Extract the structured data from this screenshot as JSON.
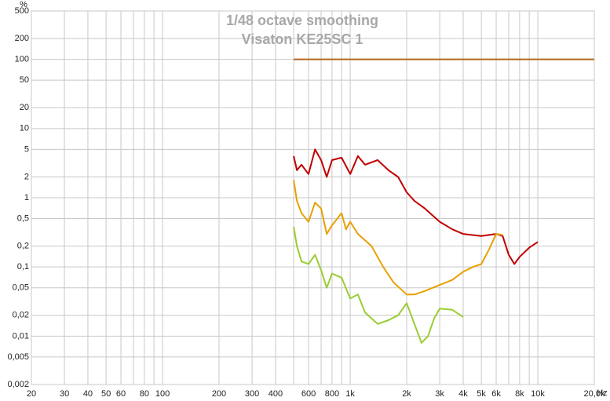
{
  "chart_data": {
    "type": "line",
    "title": "1/48 octave smoothing",
    "subtitle": "Visaton KE25SC 1",
    "y_unit": "%",
    "x_unit": "Hz",
    "xlog": true,
    "ylog": true,
    "grid": true,
    "xlim": [
      20,
      20000
    ],
    "ylim": [
      0.002,
      500
    ],
    "xticks": [
      20,
      30,
      40,
      50,
      60,
      80,
      100,
      200,
      300,
      400,
      600,
      800,
      {
        "value": 1000,
        "label": "1k"
      },
      {
        "value": 2000,
        "label": "2k"
      },
      {
        "value": 3000,
        "label": "3k"
      },
      {
        "value": 4000,
        "label": "4k"
      },
      {
        "value": 5000,
        "label": "5k"
      },
      {
        "value": 6000,
        "label": "6k"
      },
      {
        "value": 8000,
        "label": "8k"
      },
      {
        "value": 10000,
        "label": "10k"
      },
      {
        "value": 20000,
        "label": "20,0k"
      }
    ],
    "x_minor_ticks": [
      70,
      90,
      500,
      700,
      900,
      7000,
      9000
    ],
    "yticks": [
      {
        "value": 0.002,
        "label": "0,002"
      },
      {
        "value": 0.005,
        "label": "0,005"
      },
      {
        "value": 0.01,
        "label": "0,01"
      },
      {
        "value": 0.02,
        "label": "0,02"
      },
      {
        "value": 0.05,
        "label": "0,05"
      },
      {
        "value": 0.1,
        "label": "0,1"
      },
      {
        "value": 0.2,
        "label": "0,2"
      },
      {
        "value": 0.5,
        "label": "0,5"
      },
      1,
      2,
      5,
      10,
      20,
      50,
      100,
      200,
      500
    ],
    "series": [
      {
        "color": "#b5651d",
        "x": [
          500,
          20000
        ],
        "values": [
          100,
          100
        ]
      },
      {
        "color": "#c00000",
        "x": [
          500,
          520,
          550,
          600,
          650,
          700,
          750,
          800,
          900,
          1000,
          1100,
          1200,
          1400,
          1600,
          1800,
          2000,
          2200,
          2500,
          3000,
          3500,
          4000,
          5000,
          6000,
          6500,
          7000,
          7500,
          8000,
          9000,
          10000
        ],
        "values": [
          4,
          2.5,
          3,
          2.2,
          5,
          3.5,
          2,
          3.5,
          3.8,
          2.2,
          4,
          3,
          3.5,
          2.5,
          2,
          1.2,
          0.9,
          0.7,
          0.45,
          0.35,
          0.3,
          0.28,
          0.3,
          0.28,
          0.15,
          0.11,
          0.14,
          0.19,
          0.23
        ]
      },
      {
        "color": "#e8a000",
        "x": [
          500,
          520,
          550,
          600,
          650,
          700,
          750,
          800,
          900,
          950,
          1000,
          1100,
          1300,
          1500,
          1700,
          2000,
          2200,
          2500,
          3000,
          3500,
          4000,
          4500,
          5000,
          5500,
          6000,
          6500
        ],
        "values": [
          1.8,
          0.9,
          0.6,
          0.45,
          0.85,
          0.7,
          0.3,
          0.4,
          0.6,
          0.35,
          0.45,
          0.3,
          0.2,
          0.1,
          0.06,
          0.04,
          0.04,
          0.045,
          0.055,
          0.065,
          0.085,
          0.1,
          0.11,
          0.18,
          0.3,
          0.29
        ]
      },
      {
        "color": "#9acd32",
        "x": [
          500,
          520,
          550,
          600,
          650,
          700,
          750,
          800,
          900,
          1000,
          1100,
          1200,
          1400,
          1600,
          1800,
          2000,
          2200,
          2400,
          2600,
          2800,
          3000,
          3500,
          4000
        ],
        "values": [
          0.38,
          0.2,
          0.12,
          0.11,
          0.15,
          0.09,
          0.05,
          0.08,
          0.07,
          0.035,
          0.04,
          0.022,
          0.015,
          0.017,
          0.02,
          0.03,
          0.015,
          0.008,
          0.01,
          0.018,
          0.025,
          0.024,
          0.019
        ]
      }
    ]
  }
}
